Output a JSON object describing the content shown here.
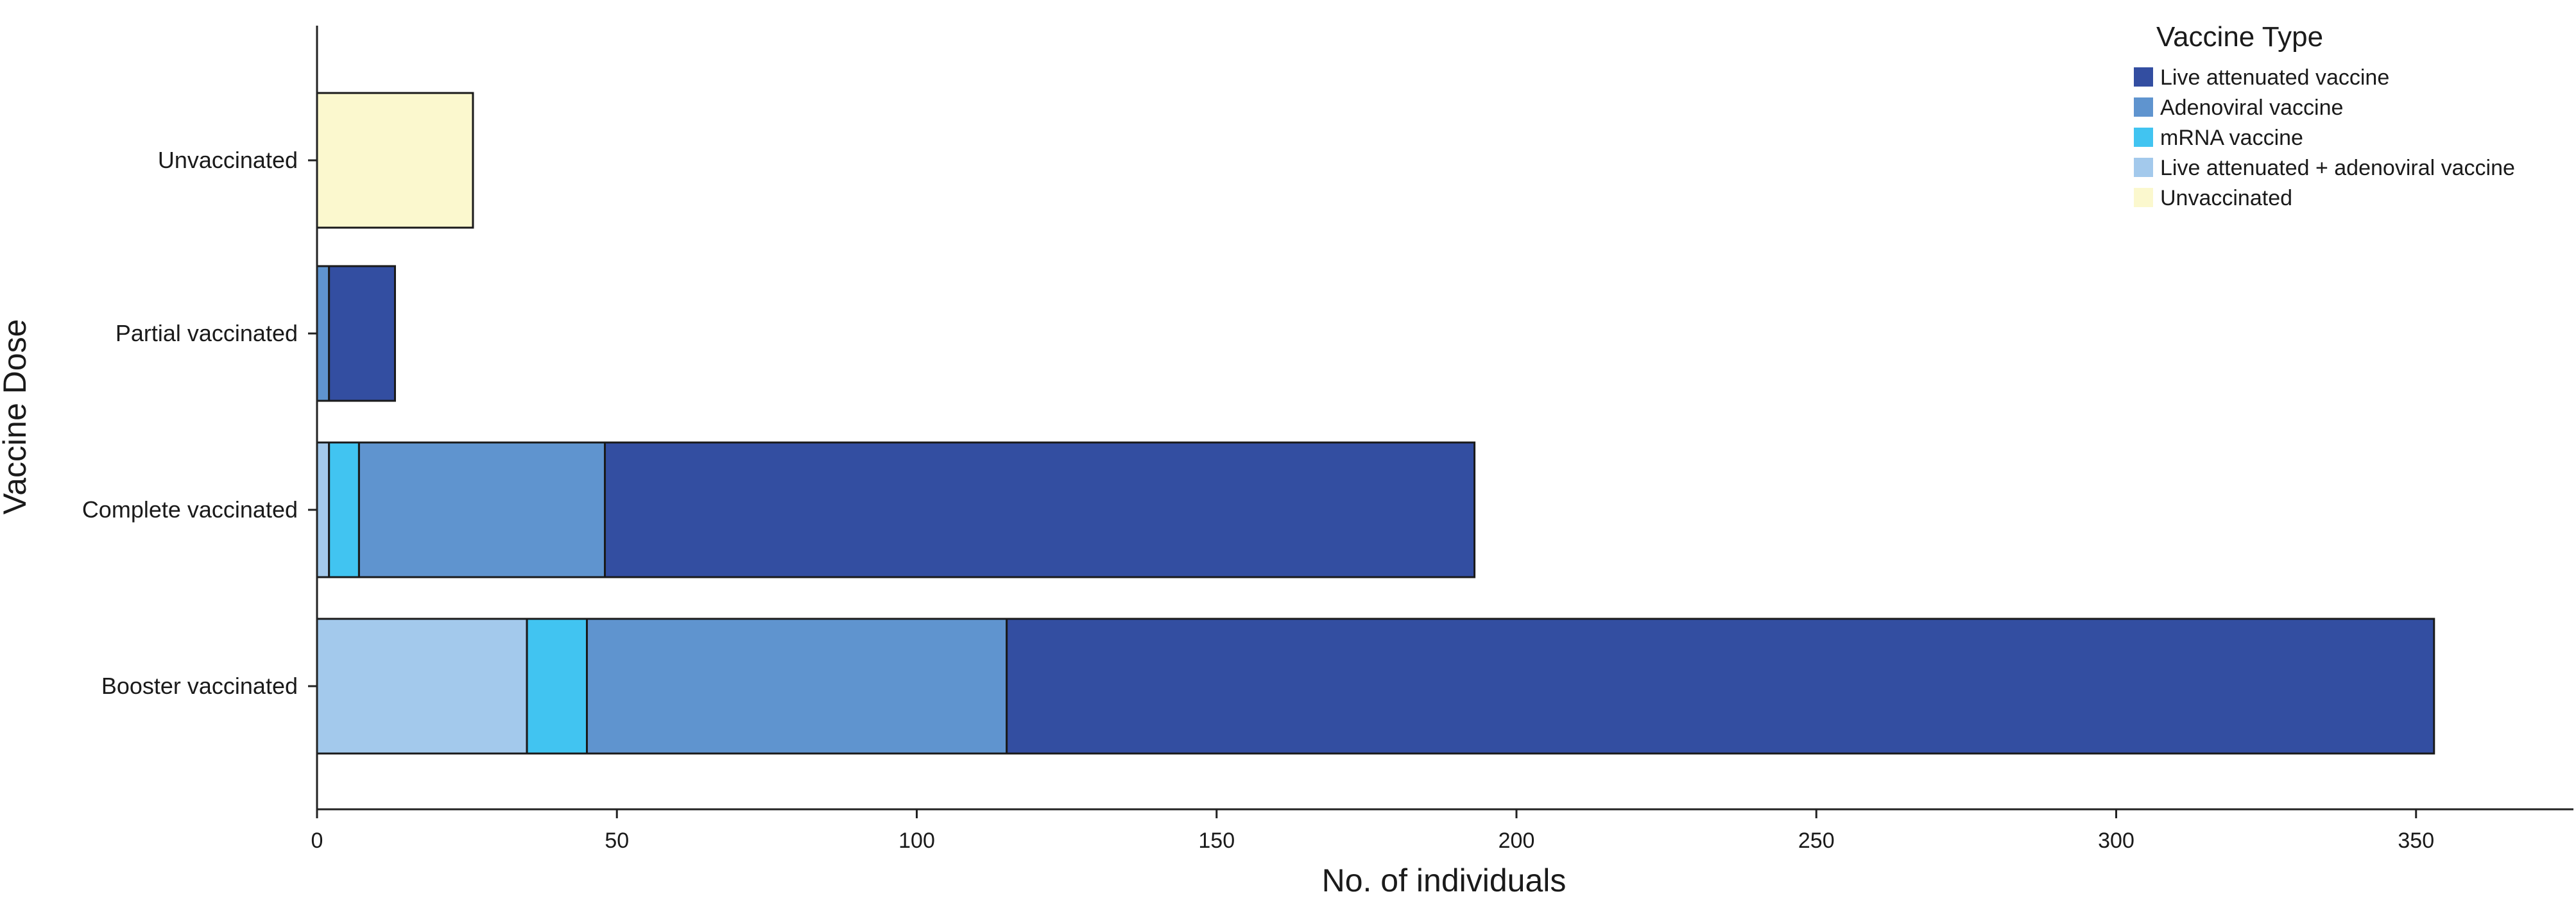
{
  "chart_data": {
    "type": "bar",
    "orientation": "horizontal",
    "stacked": true,
    "xlabel": "No. of individuals",
    "ylabel": "Vaccine Dose",
    "xlim": [
      0,
      375
    ],
    "xticks": [
      0,
      50,
      100,
      150,
      200,
      250,
      300,
      350
    ],
    "grid": false,
    "categories": [
      "Unvaccinated",
      "Partial vaccinated",
      "Complete vaccinated",
      "Booster vaccinated"
    ],
    "legend": {
      "title": "Vaccine Type",
      "position": "top-right"
    },
    "series": [
      {
        "name": "Live attenuated + adenoviral vaccine",
        "color": "#a3c9ec",
        "values": [
          0,
          0,
          2,
          35
        ]
      },
      {
        "name": "mRNA vaccine",
        "color": "#41c4f1",
        "values": [
          0,
          0,
          5,
          10
        ]
      },
      {
        "name": "Adenoviral vaccine",
        "color": "#5f94cf",
        "values": [
          0,
          2,
          41,
          70
        ]
      },
      {
        "name": "Live attenuated vaccine",
        "color": "#334ea1",
        "values": [
          0,
          11,
          145,
          238
        ]
      },
      {
        "name": "Unvaccinated",
        "color": "#fbf8ce",
        "values": [
          26,
          0,
          0,
          0
        ]
      }
    ],
    "legend_order": [
      "Live attenuated vaccine",
      "Adenoviral vaccine",
      "mRNA vaccine",
      "Live attenuated + adenoviral vaccine",
      "Unvaccinated"
    ]
  }
}
